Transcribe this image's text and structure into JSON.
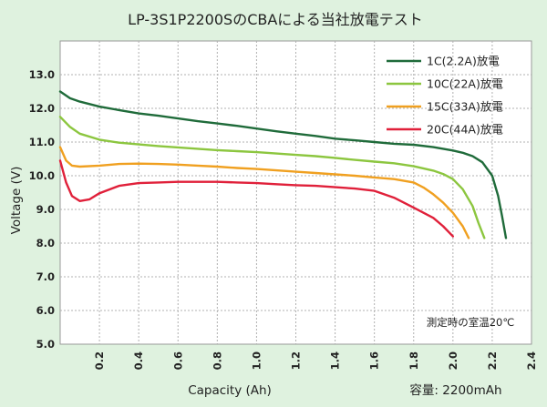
{
  "chart_data": {
    "type": "line",
    "title": "LP-3S1P2200SのCBAによる当社放電テスト",
    "xlabel": "Capacity (Ah)",
    "ylabel": "Voltage (V)",
    "xlim": [
      0,
      2.4
    ],
    "ylim": [
      5.0,
      14.0
    ],
    "x_ticks": [
      "0.2",
      "0.4",
      "0.6",
      "0.8",
      "1.0",
      "1.2",
      "1.4",
      "1.6",
      "1.8",
      "2.0",
      "2.2",
      "2.4"
    ],
    "y_ticks": [
      "5.0",
      "6.0",
      "7.0",
      "8.0",
      "9.0",
      "10.0",
      "11.0",
      "12.0",
      "13.0"
    ],
    "grid": true,
    "legend_position": "top-right",
    "note": "測定時の室温20℃",
    "capacity_note": "容量: 2200mAh",
    "series": [
      {
        "name": "1C(2.2A)放電",
        "color": "#1f6b3a",
        "points": [
          [
            0,
            12.5
          ],
          [
            0.05,
            12.3
          ],
          [
            0.1,
            12.2
          ],
          [
            0.2,
            12.05
          ],
          [
            0.3,
            11.95
          ],
          [
            0.4,
            11.85
          ],
          [
            0.5,
            11.78
          ],
          [
            0.6,
            11.7
          ],
          [
            0.7,
            11.62
          ],
          [
            0.8,
            11.55
          ],
          [
            0.9,
            11.48
          ],
          [
            1.0,
            11.4
          ],
          [
            1.1,
            11.32
          ],
          [
            1.2,
            11.25
          ],
          [
            1.3,
            11.18
          ],
          [
            1.4,
            11.1
          ],
          [
            1.5,
            11.05
          ],
          [
            1.6,
            11.0
          ],
          [
            1.7,
            10.95
          ],
          [
            1.8,
            10.92
          ],
          [
            1.9,
            10.85
          ],
          [
            2.0,
            10.75
          ],
          [
            2.05,
            10.68
          ],
          [
            2.1,
            10.58
          ],
          [
            2.15,
            10.4
          ],
          [
            2.2,
            10.0
          ],
          [
            2.23,
            9.4
          ],
          [
            2.25,
            8.8
          ],
          [
            2.27,
            8.15
          ]
        ]
      },
      {
        "name": "10C(22A)放電",
        "color": "#8cc63f",
        "points": [
          [
            0,
            11.75
          ],
          [
            0.05,
            11.45
          ],
          [
            0.1,
            11.25
          ],
          [
            0.2,
            11.07
          ],
          [
            0.3,
            10.98
          ],
          [
            0.4,
            10.93
          ],
          [
            0.5,
            10.88
          ],
          [
            0.6,
            10.84
          ],
          [
            0.7,
            10.8
          ],
          [
            0.8,
            10.76
          ],
          [
            0.9,
            10.73
          ],
          [
            1.0,
            10.7
          ],
          [
            1.1,
            10.66
          ],
          [
            1.2,
            10.62
          ],
          [
            1.3,
            10.58
          ],
          [
            1.4,
            10.53
          ],
          [
            1.5,
            10.47
          ],
          [
            1.6,
            10.42
          ],
          [
            1.7,
            10.37
          ],
          [
            1.8,
            10.28
          ],
          [
            1.9,
            10.15
          ],
          [
            1.95,
            10.05
          ],
          [
            2.0,
            9.9
          ],
          [
            2.05,
            9.6
          ],
          [
            2.1,
            9.1
          ],
          [
            2.13,
            8.6
          ],
          [
            2.16,
            8.15
          ]
        ]
      },
      {
        "name": "15C(33A)放電",
        "color": "#f0a020",
        "points": [
          [
            0,
            10.85
          ],
          [
            0.03,
            10.45
          ],
          [
            0.06,
            10.3
          ],
          [
            0.1,
            10.27
          ],
          [
            0.2,
            10.3
          ],
          [
            0.3,
            10.35
          ],
          [
            0.4,
            10.36
          ],
          [
            0.5,
            10.35
          ],
          [
            0.6,
            10.33
          ],
          [
            0.7,
            10.3
          ],
          [
            0.8,
            10.27
          ],
          [
            0.9,
            10.23
          ],
          [
            1.0,
            10.2
          ],
          [
            1.1,
            10.16
          ],
          [
            1.2,
            10.12
          ],
          [
            1.3,
            10.08
          ],
          [
            1.4,
            10.04
          ],
          [
            1.5,
            10.0
          ],
          [
            1.6,
            9.95
          ],
          [
            1.7,
            9.9
          ],
          [
            1.8,
            9.8
          ],
          [
            1.85,
            9.65
          ],
          [
            1.9,
            9.45
          ],
          [
            1.95,
            9.2
          ],
          [
            2.0,
            8.9
          ],
          [
            2.05,
            8.5
          ],
          [
            2.08,
            8.15
          ]
        ]
      },
      {
        "name": "20C(44A)放電",
        "color": "#e0203a",
        "points": [
          [
            0,
            10.45
          ],
          [
            0.03,
            9.8
          ],
          [
            0.06,
            9.4
          ],
          [
            0.1,
            9.25
          ],
          [
            0.15,
            9.3
          ],
          [
            0.2,
            9.48
          ],
          [
            0.3,
            9.7
          ],
          [
            0.4,
            9.78
          ],
          [
            0.5,
            9.8
          ],
          [
            0.6,
            9.82
          ],
          [
            0.7,
            9.82
          ],
          [
            0.8,
            9.82
          ],
          [
            0.9,
            9.8
          ],
          [
            1.0,
            9.78
          ],
          [
            1.1,
            9.75
          ],
          [
            1.2,
            9.72
          ],
          [
            1.3,
            9.7
          ],
          [
            1.4,
            9.66
          ],
          [
            1.5,
            9.62
          ],
          [
            1.6,
            9.55
          ],
          [
            1.7,
            9.35
          ],
          [
            1.8,
            9.05
          ],
          [
            1.9,
            8.75
          ],
          [
            1.95,
            8.5
          ],
          [
            2.0,
            8.2
          ]
        ]
      }
    ]
  }
}
